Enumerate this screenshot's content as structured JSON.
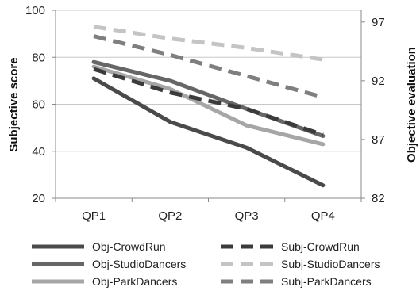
{
  "chart_data": {
    "type": "line",
    "categories": [
      "QP1",
      "QP2",
      "QP3",
      "QP4"
    ],
    "left_axis": {
      "label": "Subjective score",
      "ylim": [
        20,
        100
      ],
      "ticks": [
        "20",
        "40",
        "60",
        "80",
        "100"
      ]
    },
    "right_axis": {
      "label": "Objective evaluation",
      "ylim": [
        82,
        98
      ],
      "ticks": [
        "82",
        "87",
        "92",
        "97"
      ]
    },
    "grid": true,
    "legend_position": "bottom",
    "series": [
      {
        "name": "Obj-CrowdRun",
        "axis": "right",
        "style": "solid",
        "color": "#4a4a4a",
        "values": [
          92.2,
          88.5,
          86.3,
          83.1
        ]
      },
      {
        "name": "Obj-StudioDancers",
        "axis": "right",
        "style": "solid",
        "color": "#666666",
        "values": [
          93.6,
          92.0,
          89.6,
          87.3
        ]
      },
      {
        "name": "Obj-ParkDancers",
        "axis": "right",
        "style": "solid",
        "color": "#a6a6a6",
        "values": [
          93.2,
          91.3,
          88.2,
          86.6
        ]
      },
      {
        "name": "Subj-CrowdRun",
        "axis": "left",
        "style": "dashed",
        "color": "#3b3b3b",
        "values": [
          75,
          65,
          58,
          47
        ]
      },
      {
        "name": "Subj-StudioDancers",
        "axis": "left",
        "style": "dashed",
        "color": "#c4c4c4",
        "values": [
          93,
          88,
          84,
          79
        ]
      },
      {
        "name": "Subj-ParkDancers",
        "axis": "left",
        "style": "dashed",
        "color": "#7f7f7f",
        "values": [
          89,
          81,
          72,
          63
        ]
      }
    ]
  }
}
